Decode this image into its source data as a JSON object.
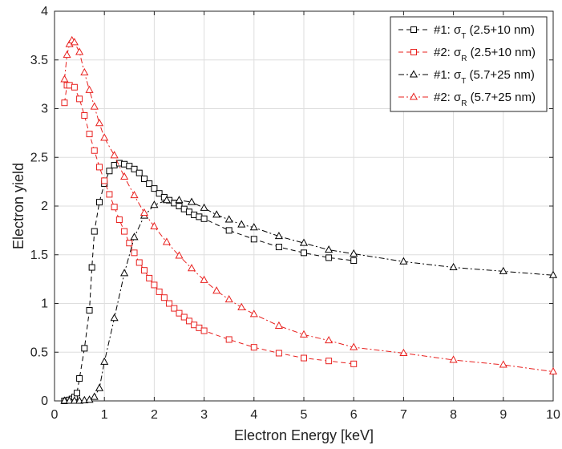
{
  "chart_data": {
    "type": "line",
    "title": "",
    "xlabel": "Electron Energy [keV]",
    "ylabel": "Electron yield",
    "xlim": [
      0,
      10
    ],
    "ylim": [
      0,
      4
    ],
    "xticks": [
      0,
      1,
      2,
      3,
      4,
      5,
      6,
      7,
      8,
      9,
      10
    ],
    "yticks": [
      0,
      0.5,
      1,
      1.5,
      2,
      2.5,
      3,
      3.5,
      4
    ],
    "grid": true,
    "legend_position": "top-right",
    "series": [
      {
        "name": "#1: σT (2.5+10 nm)",
        "legend": {
          "prefix": "#1: σ",
          "sub": "T",
          "suffix": " (2.5+10 nm)"
        },
        "color": "#000000",
        "marker": "square",
        "line_style": "dashed",
        "x": [
          0.2,
          0.25,
          0.3,
          0.35,
          0.4,
          0.45,
          0.5,
          0.6,
          0.7,
          0.75,
          0.8,
          0.9,
          1.0,
          1.1,
          1.2,
          1.3,
          1.4,
          1.5,
          1.6,
          1.7,
          1.8,
          1.9,
          2.0,
          2.1,
          2.2,
          2.3,
          2.4,
          2.5,
          2.6,
          2.7,
          2.8,
          2.9,
          3.0,
          3.5,
          4.0,
          4.5,
          5.0,
          5.5,
          6.0
        ],
        "y": [
          0.0,
          0.005,
          0.01,
          0.02,
          0.04,
          0.08,
          0.23,
          0.54,
          0.93,
          1.37,
          1.74,
          2.04,
          2.23,
          2.36,
          2.42,
          2.44,
          2.43,
          2.41,
          2.38,
          2.34,
          2.28,
          2.23,
          2.18,
          2.13,
          2.09,
          2.06,
          2.03,
          2.0,
          1.97,
          1.94,
          1.91,
          1.89,
          1.87,
          1.75,
          1.66,
          1.58,
          1.52,
          1.47,
          1.44
        ]
      },
      {
        "name": "#2: σR (2.5+10 nm)",
        "legend": {
          "prefix": "#2: σ",
          "sub": "R",
          "suffix": " (2.5+10 nm)"
        },
        "color": "#e8201e",
        "marker": "square",
        "line_style": "dashed",
        "x": [
          0.2,
          0.25,
          0.3,
          0.4,
          0.5,
          0.6,
          0.7,
          0.8,
          0.9,
          1.0,
          1.1,
          1.2,
          1.3,
          1.4,
          1.5,
          1.6,
          1.7,
          1.8,
          1.9,
          2.0,
          2.1,
          2.2,
          2.3,
          2.4,
          2.5,
          2.6,
          2.7,
          2.8,
          2.9,
          3.0,
          3.5,
          4.0,
          4.5,
          5.0,
          5.5,
          6.0
        ],
        "y": [
          3.06,
          3.24,
          3.24,
          3.22,
          3.1,
          2.93,
          2.74,
          2.57,
          2.4,
          2.26,
          2.12,
          1.99,
          1.86,
          1.74,
          1.62,
          1.52,
          1.42,
          1.34,
          1.26,
          1.19,
          1.12,
          1.06,
          1.0,
          0.95,
          0.9,
          0.86,
          0.82,
          0.78,
          0.75,
          0.72,
          0.63,
          0.55,
          0.49,
          0.44,
          0.41,
          0.38
        ]
      },
      {
        "name": "#1: σT (5.7+25 nm)",
        "legend": {
          "prefix": "#1: σ",
          "sub": "T",
          "suffix": " (5.7+25 nm)"
        },
        "color": "#000000",
        "marker": "triangle",
        "line_style": "dashdot",
        "x": [
          0.2,
          0.3,
          0.4,
          0.5,
          0.6,
          0.7,
          0.8,
          0.9,
          1.0,
          1.2,
          1.4,
          1.6,
          1.8,
          2.0,
          2.25,
          2.5,
          2.75,
          3.0,
          3.25,
          3.5,
          3.75,
          4.0,
          4.5,
          5.0,
          5.5,
          6.0,
          7.0,
          8.0,
          9.0,
          10.0
        ],
        "y": [
          0.0,
          0.0,
          0.0,
          0.0,
          0.005,
          0.01,
          0.04,
          0.13,
          0.4,
          0.85,
          1.31,
          1.68,
          1.9,
          2.01,
          2.06,
          2.06,
          2.04,
          1.98,
          1.91,
          1.86,
          1.81,
          1.78,
          1.69,
          1.62,
          1.55,
          1.51,
          1.43,
          1.37,
          1.33,
          1.29
        ]
      },
      {
        "name": "#2: σR (5.7+25 nm)",
        "legend": {
          "prefix": "#2: σ",
          "sub": "R",
          "suffix": " (5.7+25 nm)"
        },
        "color": "#e8201e",
        "marker": "triangle",
        "line_style": "dashdot",
        "x": [
          0.2,
          0.25,
          0.3,
          0.35,
          0.4,
          0.5,
          0.6,
          0.7,
          0.8,
          0.9,
          1.0,
          1.2,
          1.4,
          1.6,
          1.8,
          2.0,
          2.25,
          2.5,
          2.75,
          3.0,
          3.25,
          3.5,
          3.75,
          4.0,
          4.5,
          5.0,
          5.5,
          6.0,
          7.0,
          8.0,
          9.0,
          10.0
        ],
        "y": [
          3.3,
          3.55,
          3.66,
          3.7,
          3.68,
          3.58,
          3.37,
          3.19,
          3.02,
          2.85,
          2.7,
          2.52,
          2.3,
          2.11,
          1.93,
          1.79,
          1.63,
          1.49,
          1.36,
          1.24,
          1.13,
          1.04,
          0.96,
          0.89,
          0.77,
          0.68,
          0.62,
          0.55,
          0.49,
          0.42,
          0.37,
          0.3
        ]
      }
    ]
  }
}
